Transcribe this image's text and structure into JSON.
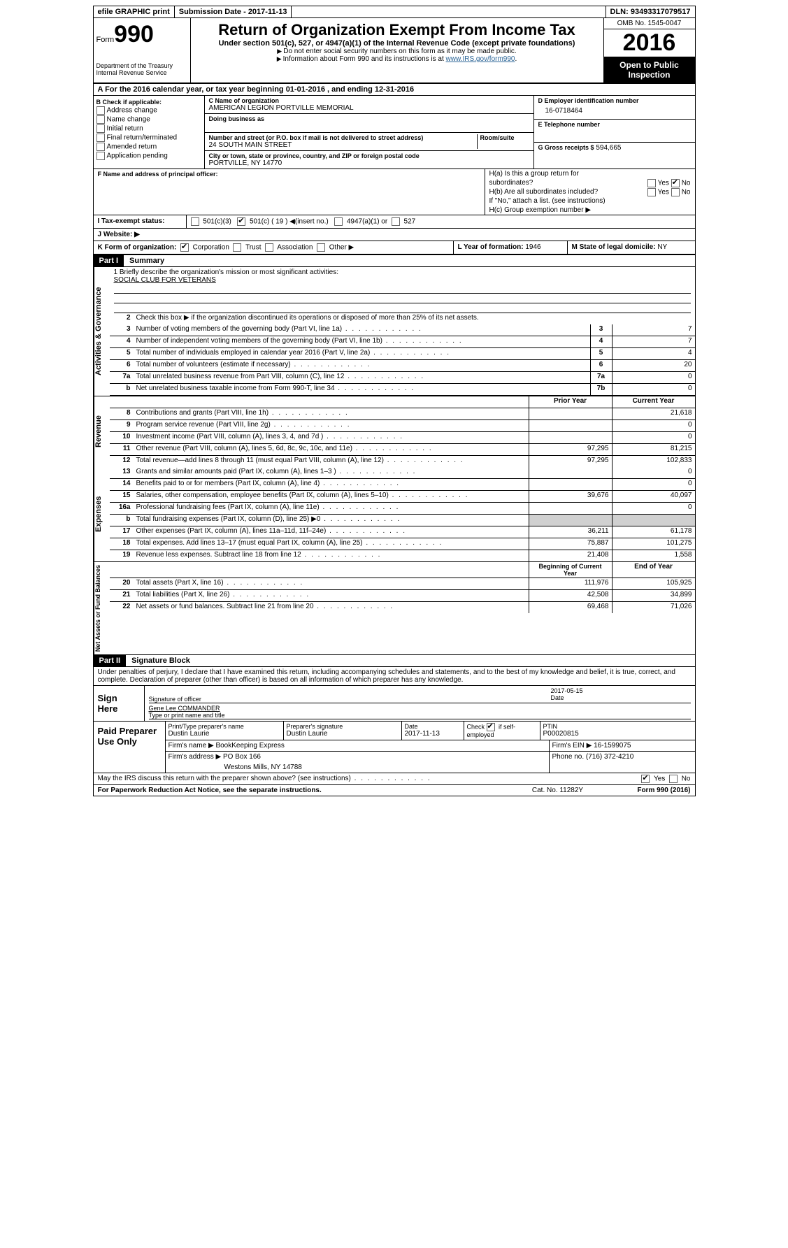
{
  "topbar": {
    "efile": "efile GRAPHIC print",
    "submission": "Submission Date - 2017-11-13",
    "dln": "DLN: 93493317079517"
  },
  "header": {
    "form_label": "Form",
    "form_number": "990",
    "dept1": "Department of the Treasury",
    "dept2": "Internal Revenue Service",
    "title": "Return of Organization Exempt From Income Tax",
    "subtitle": "Under section 501(c), 527, or 4947(a)(1) of the Internal Revenue Code (except private foundations)",
    "hint1": "Do not enter social security numbers on this form as it may be made public.",
    "hint2_prefix": "Information about Form 990 and its instructions is at ",
    "hint2_link": "www.IRS.gov/form990",
    "omb": "OMB No. 1545-0047",
    "year": "2016",
    "open1": "Open to Public",
    "open2": "Inspection"
  },
  "rowA": "A  For the 2016 calendar year, or tax year beginning 01-01-2016   , and ending 12-31-2016",
  "B": {
    "title": "B Check if applicable:",
    "items": [
      "Address change",
      "Name change",
      "Initial return",
      "Final return/terminated",
      "Amended return",
      "Application pending"
    ]
  },
  "C": {
    "name_lab": "C Name of organization",
    "name": "AMERICAN LEGION PORTVILLE MEMORIAL",
    "dba_lab": "Doing business as",
    "addr_lab": "Number and street (or P.O. box if mail is not delivered to street address)",
    "room_lab": "Room/suite",
    "addr": "24 SOUTH MAIN STREET",
    "city_lab": "City or town, state or province, country, and ZIP or foreign postal code",
    "city": "PORTVILLE, NY  14770"
  },
  "D": {
    "lab": "D Employer identification number",
    "val": "16-0718464"
  },
  "E": {
    "lab": "E Telephone number",
    "val": ""
  },
  "G": {
    "lab": "G Gross receipts $",
    "val": "594,665"
  },
  "F": {
    "lab": "F  Name and address of principal officer:"
  },
  "H": {
    "a": "H(a)  Is this a group return for",
    "a2": "subordinates?",
    "b": "H(b) Are all subordinates included?",
    "bno": "If \"No,\" attach a list. (see instructions)",
    "c": "H(c)  Group exemption number ▶",
    "yes": "Yes",
    "no": "No"
  },
  "I": {
    "lab": "I  Tax-exempt status:",
    "c3": "501(c)(3)",
    "c": "501(c) (",
    "cn": "19",
    "ci": ") ◀(insert no.)",
    "a": "4947(a)(1) or",
    "s": "527"
  },
  "J": {
    "lab": "J  Website: ▶"
  },
  "K": {
    "lab": "K Form of organization:",
    "corp": "Corporation",
    "trust": "Trust",
    "assoc": "Association",
    "other": "Other ▶"
  },
  "L": {
    "lab": "L Year of formation:",
    "val": "1946"
  },
  "M": {
    "lab": "M State of legal domicile:",
    "val": "NY"
  },
  "part1": {
    "bar": "Part I",
    "title": "Summary"
  },
  "mission": {
    "prompt": "1  Briefly describe the organization's mission or most significant activities:",
    "text": "SOCIAL CLUB FOR VETERANS"
  },
  "l2": "Check this box ▶        if the organization discontinued its operations or disposed of more than 25% of its net assets.",
  "lines_ag": [
    {
      "n": "3",
      "d": "Number of voting members of the governing body (Part VI, line 1a)",
      "b": "3",
      "v": "7"
    },
    {
      "n": "4",
      "d": "Number of independent voting members of the governing body (Part VI, line 1b)",
      "b": "4",
      "v": "7"
    },
    {
      "n": "5",
      "d": "Total number of individuals employed in calendar year 2016 (Part V, line 2a)",
      "b": "5",
      "v": "4"
    },
    {
      "n": "6",
      "d": "Total number of volunteers (estimate if necessary)",
      "b": "6",
      "v": "20"
    },
    {
      "n": "7a",
      "d": "Total unrelated business revenue from Part VIII, column (C), line 12",
      "b": "7a",
      "v": "0"
    },
    {
      "n": "b",
      "d": "Net unrelated business taxable income from Form 990-T, line 34",
      "b": "7b",
      "v": "0"
    }
  ],
  "rev_hdr": {
    "py": "Prior Year",
    "cy": "Current Year"
  },
  "lines_rev": [
    {
      "n": "8",
      "d": "Contributions and grants (Part VIII, line 1h)",
      "py": "",
      "cy": "21,618"
    },
    {
      "n": "9",
      "d": "Program service revenue (Part VIII, line 2g)",
      "py": "",
      "cy": "0"
    },
    {
      "n": "10",
      "d": "Investment income (Part VIII, column (A), lines 3, 4, and 7d )",
      "py": "",
      "cy": "0"
    },
    {
      "n": "11",
      "d": "Other revenue (Part VIII, column (A), lines 5, 6d, 8c, 9c, 10c, and 11e)",
      "py": "97,295",
      "cy": "81,215"
    },
    {
      "n": "12",
      "d": "Total revenue—add lines 8 through 11 (must equal Part VIII, column (A), line 12)",
      "py": "97,295",
      "cy": "102,833"
    }
  ],
  "lines_exp": [
    {
      "n": "13",
      "d": "Grants and similar amounts paid (Part IX, column (A), lines 1–3 )",
      "py": "",
      "cy": "0"
    },
    {
      "n": "14",
      "d": "Benefits paid to or for members (Part IX, column (A), line 4)",
      "py": "",
      "cy": "0"
    },
    {
      "n": "15",
      "d": "Salaries, other compensation, employee benefits (Part IX, column (A), lines 5–10)",
      "py": "39,676",
      "cy": "40,097"
    },
    {
      "n": "16a",
      "d": "Professional fundraising fees (Part IX, column (A), line 11e)",
      "py": "",
      "cy": "0"
    },
    {
      "n": "b",
      "d": "Total fundraising expenses (Part IX, column (D), line 25) ▶0",
      "py": "shade",
      "cy": "shade"
    },
    {
      "n": "17",
      "d": "Other expenses (Part IX, column (A), lines 11a–11d, 11f–24e)",
      "py": "36,211",
      "cy": "61,178"
    },
    {
      "n": "18",
      "d": "Total expenses. Add lines 13–17 (must equal Part IX, column (A), line 25)",
      "py": "75,887",
      "cy": "101,275"
    },
    {
      "n": "19",
      "d": "Revenue less expenses. Subtract line 18 from line 12",
      "py": "21,408",
      "cy": "1,558"
    }
  ],
  "na_hdr": {
    "py": "Beginning of Current Year",
    "cy": "End of Year"
  },
  "lines_na": [
    {
      "n": "20",
      "d": "Total assets (Part X, line 16)",
      "py": "111,976",
      "cy": "105,925"
    },
    {
      "n": "21",
      "d": "Total liabilities (Part X, line 26)",
      "py": "42,508",
      "cy": "34,899"
    },
    {
      "n": "22",
      "d": "Net assets or fund balances. Subtract line 21 from line 20",
      "py": "69,468",
      "cy": "71,026"
    }
  ],
  "part2": {
    "bar": "Part II",
    "title": "Signature Block"
  },
  "penalty": "Under penalties of perjury, I declare that I have examined this return, including accompanying schedules and statements, and to the best of my knowledge and belief, it is true, correct, and complete. Declaration of preparer (other than officer) is based on all information of which preparer has any knowledge.",
  "sign": {
    "label": "Sign Here",
    "sig": "Signature of officer",
    "date": "Date",
    "date_val": "2017-05-15",
    "name": "Gene Lee  COMMANDER",
    "name_lab": "Type or print name and title"
  },
  "paid": {
    "label": "Paid Preparer Use Only",
    "h1": "Print/Type preparer's name",
    "v1": "Dustin Laurie",
    "h2": "Preparer's signature",
    "v2": "Dustin Laurie",
    "h3": "Date",
    "v3": "2017-11-13",
    "h4": "Check        if self-employed",
    "h5": "PTIN",
    "v5": "P00020815",
    "firm_lab": "Firm's name    ▶",
    "firm": "BookKeeping Express",
    "ein_lab": "Firm's EIN ▶",
    "ein": "16-1599075",
    "addr_lab": "Firm's address ▶",
    "addr1": "PO Box 166",
    "addr2": "Westons Mills, NY  14788",
    "phone_lab": "Phone no.",
    "phone": "(716) 372-4210"
  },
  "discuss": {
    "q": "May the IRS discuss this return with the preparer shown above? (see instructions)",
    "yes": "Yes",
    "no": "No"
  },
  "footer": {
    "f1": "For Paperwork Reduction Act Notice, see the separate instructions.",
    "f2": "Cat. No. 11282Y",
    "f3": "Form 990 (2016)"
  },
  "side": {
    "ag": "Activities & Governance",
    "rev": "Revenue",
    "exp": "Expenses",
    "na": "Net Assets or Fund Balances"
  }
}
